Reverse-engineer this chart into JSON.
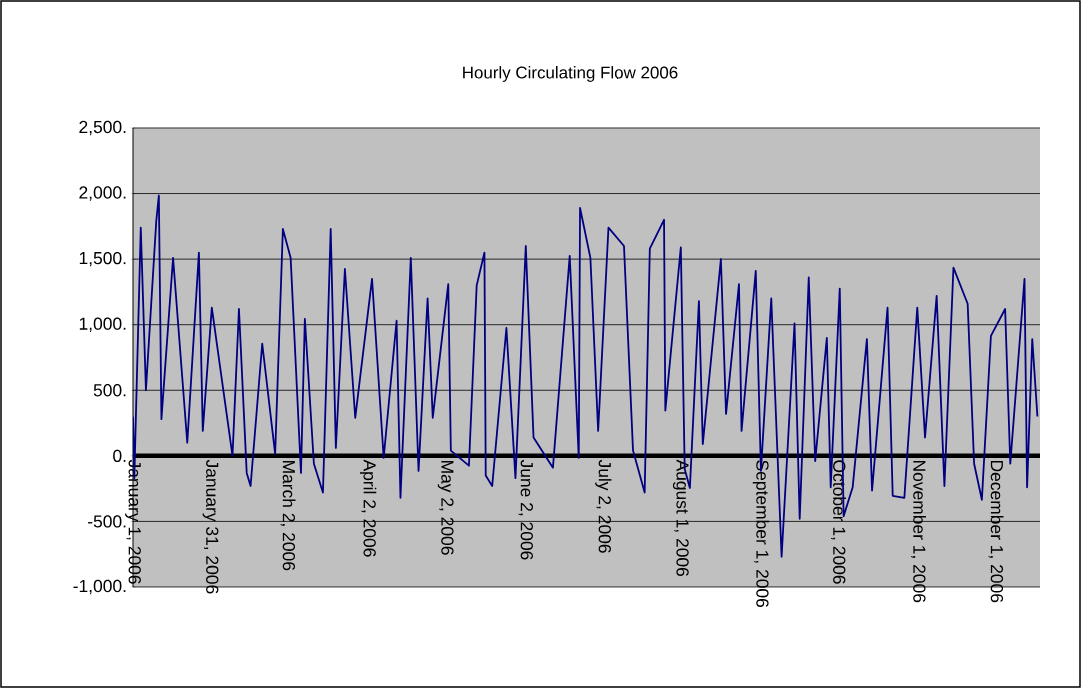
{
  "chart_data": {
    "type": "line",
    "title": "Hourly Circulating Flow 2006",
    "x": [
      "2006-01-01T00:00",
      "2006-01-01T12:00",
      "2006-01-04",
      "2006-01-06",
      "2006-01-10",
      "2006-01-11",
      "2006-01-12",
      "2006-01-16T12:00",
      "2006-01-22",
      "2006-01-26T12:00",
      "2006-01-28",
      "2006-01-31T12:00",
      "2006-02-08T12:00",
      "2006-02-11",
      "2006-02-14",
      "2006-02-15T12:00",
      "2006-02-20",
      "2006-02-25",
      "2006-02-28",
      "2006-03-03",
      "2006-03-07",
      "2006-03-08T12:00",
      "2006-03-12",
      "2006-03-15T12:00",
      "2006-03-18T12:00",
      "2006-03-20T12:00",
      "2006-03-24",
      "2006-03-28",
      "2006-04-03T12:00",
      "2006-04-08",
      "2006-04-13",
      "2006-04-14T12:00",
      "2006-04-18T12:00",
      "2006-04-21T12:00",
      "2006-04-25",
      "2006-04-27",
      "2006-05-03",
      "2006-05-04",
      "2006-05-11",
      "2006-05-14",
      "2006-05-17",
      "2006-05-17T12:00",
      "2006-05-20",
      "2006-05-25T12:00",
      "2006-05-29",
      "2006-06-02",
      "2006-06-05",
      "2006-06-12T12:00",
      "2006-06-19",
      "2006-06-22T12:00",
      "2006-06-23",
      "2006-06-27",
      "2006-06-30",
      "2006-07-04",
      "2006-07-10",
      "2006-07-13T12:00",
      "2006-07-18",
      "2006-07-20",
      "2006-07-25T12:00",
      "2006-07-26",
      "2006-08-01",
      "2006-08-02T12:00",
      "2006-08-04T12:00",
      "2006-08-08",
      "2006-08-09T12:00",
      "2006-08-16T12:00",
      "2006-08-18T12:00",
      "2006-08-23T12:00",
      "2006-08-24T12:00",
      "2006-08-30",
      "2006-09-01",
      "2006-09-05",
      "2006-09-09",
      "2006-09-14",
      "2006-09-16",
      "2006-09-19T12:00",
      "2006-09-22",
      "2006-09-26T12:00",
      "2006-09-28",
      "2006-10-01T12:00",
      "2006-10-03",
      "2006-10-06T12:00",
      "2006-10-12",
      "2006-10-14",
      "2006-10-20",
      "2006-10-22",
      "2006-10-26T12:00",
      "2006-10-31T12:00",
      "2006-11-03T12:00",
      "2006-11-08",
      "2006-11-11",
      "2006-11-14T12:00",
      "2006-11-20",
      "2006-11-22T12:00",
      "2006-11-25T12:00",
      "2006-11-29",
      "2006-12-04T12:00",
      "2006-12-06T12:00",
      "2006-12-12",
      "2006-12-13",
      "2006-12-15",
      "2006-12-17"
    ],
    "series": [
      {
        "color": "#000080",
        "values": [
          300,
          -170,
          1740,
          500,
          1790,
          1985,
          280,
          1510,
          100,
          1550,
          190,
          1130,
          0,
          1120,
          -130,
          -230,
          855,
          15,
          1730,
          1510,
          -130,
          1045,
          -60,
          -280,
          1730,
          60,
          1425,
          290,
          1350,
          -15,
          1030,
          -320,
          1510,
          -115,
          1200,
          290,
          1310,
          40,
          -75,
          1300,
          1550,
          -150,
          -230,
          975,
          -170,
          1600,
          140,
          -90,
          1525,
          -15,
          1890,
          1510,
          190,
          1740,
          1600,
          40,
          -280,
          1580,
          1800,
          345,
          1590,
          -100,
          -245,
          1180,
          90,
          1500,
          320,
          1310,
          190,
          1410,
          -115,
          1200,
          -770,
          1010,
          -480,
          1360,
          -40,
          900,
          -240,
          1275,
          -460,
          -240,
          890,
          -265,
          1130,
          -305,
          -320,
          1130,
          140,
          1220,
          -230,
          1435,
          1160,
          -60,
          -335,
          915,
          1120,
          -60,
          1350,
          -240,
          890,
          300
        ]
      }
    ],
    "xlim": [
      "2006-01-01",
      "2006-12-18"
    ],
    "xticks": [
      {
        "value": "2006-01-01",
        "label": "January 1, 2006"
      },
      {
        "value": "2006-01-31",
        "label": "January 31, 2006"
      },
      {
        "value": "2006-03-02",
        "label": "March 2, 2006"
      },
      {
        "value": "2006-04-02",
        "label": "April 2, 2006"
      },
      {
        "value": "2006-05-02",
        "label": "May 2, 2006"
      },
      {
        "value": "2006-06-02",
        "label": "June 2, 2006"
      },
      {
        "value": "2006-07-02",
        "label": "July 2, 2006"
      },
      {
        "value": "2006-08-01",
        "label": "August 1, 2006"
      },
      {
        "value": "2006-09-01",
        "label": "September 1, 2006"
      },
      {
        "value": "2006-10-01",
        "label": "October 1, 2006"
      },
      {
        "value": "2006-11-01",
        "label": "November 1, 2006"
      },
      {
        "value": "2006-12-01",
        "label": "December 1, 2006"
      }
    ],
    "ylim": [
      -1000,
      2500
    ],
    "yticks": [
      {
        "value": -1000,
        "label": "-1,000."
      },
      {
        "value": -500,
        "label": "-500."
      },
      {
        "value": 0,
        "label": "0."
      },
      {
        "value": 500,
        "label": "500."
      },
      {
        "value": 1000,
        "label": "1,000."
      },
      {
        "value": 1500,
        "label": "1,500."
      },
      {
        "value": 2000,
        "label": "2,000."
      },
      {
        "value": 2500,
        "label": "2,500."
      }
    ],
    "grid": "y"
  }
}
